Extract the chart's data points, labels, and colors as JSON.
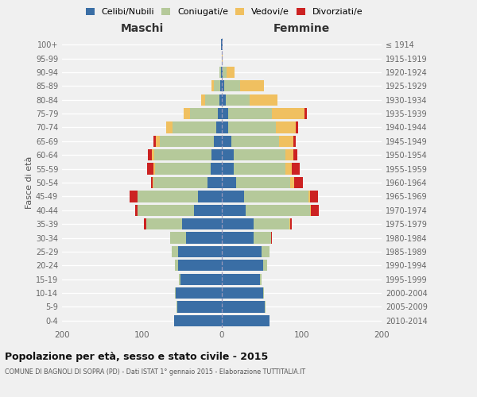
{
  "age_groups": [
    "0-4",
    "5-9",
    "10-14",
    "15-19",
    "20-24",
    "25-29",
    "30-34",
    "35-39",
    "40-44",
    "45-49",
    "50-54",
    "55-59",
    "60-64",
    "65-69",
    "70-74",
    "75-79",
    "80-84",
    "85-89",
    "90-94",
    "95-99",
    "100+"
  ],
  "birth_years": [
    "2010-2014",
    "2005-2009",
    "2000-2004",
    "1995-1999",
    "1990-1994",
    "1985-1989",
    "1980-1984",
    "1975-1979",
    "1970-1974",
    "1965-1969",
    "1960-1964",
    "1955-1959",
    "1950-1954",
    "1945-1949",
    "1940-1944",
    "1935-1939",
    "1930-1934",
    "1925-1929",
    "1920-1924",
    "1915-1919",
    "≤ 1914"
  ],
  "males": {
    "celibi": [
      60,
      56,
      58,
      52,
      55,
      55,
      45,
      50,
      35,
      30,
      18,
      14,
      13,
      10,
      7,
      5,
      3,
      2,
      1,
      0,
      1
    ],
    "coniugati": [
      0,
      1,
      1,
      2,
      4,
      8,
      20,
      45,
      70,
      75,
      68,
      70,
      72,
      68,
      55,
      35,
      18,
      8,
      2,
      0,
      0
    ],
    "vedovi": [
      0,
      0,
      0,
      0,
      0,
      0,
      0,
      0,
      0,
      0,
      1,
      2,
      3,
      5,
      8,
      8,
      5,
      3,
      0,
      0,
      0
    ],
    "divorziati": [
      0,
      0,
      0,
      0,
      0,
      0,
      0,
      3,
      3,
      10,
      2,
      8,
      5,
      3,
      0,
      0,
      0,
      0,
      0,
      0,
      0
    ]
  },
  "females": {
    "nubili": [
      60,
      54,
      52,
      48,
      52,
      50,
      40,
      40,
      30,
      28,
      18,
      15,
      15,
      12,
      8,
      8,
      5,
      3,
      1,
      0,
      1
    ],
    "coniugate": [
      0,
      1,
      1,
      2,
      5,
      10,
      22,
      45,
      80,
      80,
      68,
      65,
      65,
      60,
      60,
      55,
      30,
      20,
      5,
      0,
      0
    ],
    "vedove": [
      0,
      0,
      0,
      0,
      0,
      0,
      0,
      1,
      1,
      2,
      5,
      8,
      10,
      18,
      25,
      40,
      35,
      30,
      10,
      1,
      0
    ],
    "divorziate": [
      0,
      0,
      0,
      0,
      0,
      0,
      1,
      2,
      10,
      10,
      10,
      10,
      5,
      3,
      3,
      3,
      0,
      0,
      0,
      0,
      0
    ]
  },
  "colors": {
    "celibi_nubili": "#3a6ea5",
    "coniugati": "#b5c99a",
    "vedovi": "#f0c060",
    "divorziati": "#cc2222"
  },
  "title": "Popolazione per età, sesso e stato civile - 2015",
  "subtitle": "COMUNE DI BAGNOLI DI SOPRA (PD) - Dati ISTAT 1° gennaio 2015 - Elaborazione TUTTITALIA.IT",
  "label_maschi": "Maschi",
  "label_femmine": "Femmine",
  "ylabel_left": "Fasce di età",
  "legend_labels": [
    "Celibi/Nubili",
    "Coniugati/e",
    "Vedovi/e",
    "Divorziati/e"
  ],
  "xlim": 200,
  "background_color": "#f0f0f0",
  "grid_color": "#ffffff"
}
